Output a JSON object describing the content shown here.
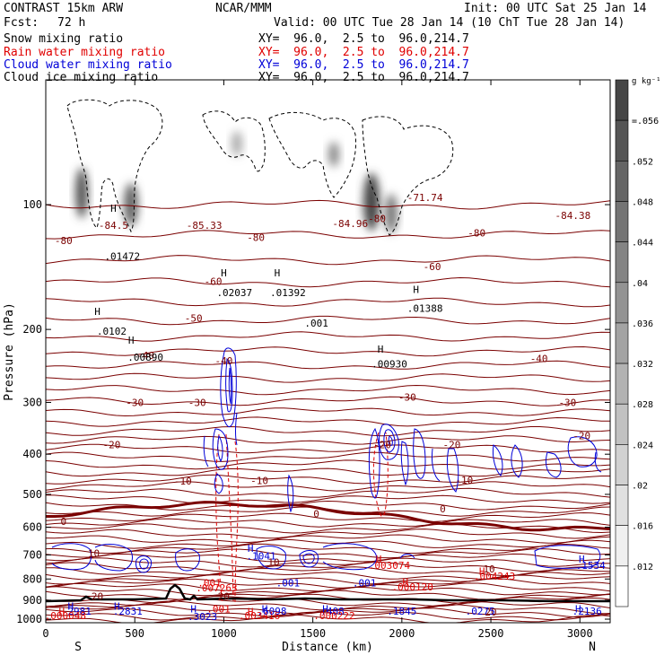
{
  "header": {
    "model": "CONTRAST 15km ARW",
    "center": "NCAR/MMM",
    "init": "Init: 00 UTC Sat 25 Jan 14",
    "fcst_label": "Fcst:",
    "fcst_value": "72 h",
    "valid": "Valid: 00 UTC Tue 28 Jan 14 (10 ChT Tue 28 Jan 14)"
  },
  "legend": [
    {
      "label": "Snow mixing ratio",
      "xy": "XY=  96.0,  2.5 to  96.0,214.7",
      "color": "#000000"
    },
    {
      "label": "Rain water mixing ratio",
      "xy": "XY=  96.0,  2.5 to  96.0,214.7",
      "color": "#e00000"
    },
    {
      "label": "Cloud water mixing ratio",
      "xy": "XY=  96.0,  2.5 to  96.0,214.7",
      "color": "#0000d8"
    },
    {
      "label": "Cloud ice mixing ratio",
      "xy": "XY=  96.0,  2.5 to  96.0,214.7",
      "color": "#000000"
    }
  ],
  "chart_data": {
    "type": "contour",
    "xlabel": "Distance (km)",
    "ylabel": "Pressure (hPa)",
    "xlim": [
      0,
      3170
    ],
    "ylim": [
      1020,
      50
    ],
    "y_log_scale": true,
    "x_ticks": [
      "0",
      "500",
      "1000",
      "1500",
      "2000",
      "2500",
      "3000"
    ],
    "y_ticks": [
      "100",
      "200",
      "300",
      "400",
      "500",
      "600",
      "700",
      "800",
      "900",
      "1000"
    ],
    "x_end_labels": {
      "left": "S",
      "right": "N"
    },
    "colorbar": {
      "unit": "g kg⁻¹",
      "ticks": [
        "=.056",
        ".052",
        ".048",
        ".044",
        ".04",
        ".036",
        ".032",
        ".028",
        ".024",
        ".02",
        ".016",
        ".012"
      ],
      "levels": [
        0.056,
        0.052,
        0.048,
        0.044,
        0.04,
        0.036,
        0.032,
        0.028,
        0.024,
        0.02,
        0.016,
        0.012
      ]
    },
    "temperature_contours": {
      "color": "#7a0000",
      "levels": [
        -80,
        -70,
        -60,
        -50,
        -40,
        -30,
        -20,
        -10,
        0,
        10,
        20
      ],
      "approx_pressure_hpa": [
        120,
        145,
        170,
        190,
        215,
        265,
        340,
        440,
        565,
        690,
        850
      ],
      "labels": [
        {
          "text": "-80",
          "x": 100,
          "p": 122
        },
        {
          "text": "-80",
          "x": 1180,
          "p": 120
        },
        {
          "text": "-80",
          "x": 1860,
          "p": 108
        },
        {
          "text": "-80",
          "x": 2420,
          "p": 117
        },
        {
          "text": "-71.74",
          "x": 2130,
          "p": 96
        },
        {
          "text": "-84.38",
          "x": 2960,
          "p": 106
        },
        {
          "text": "-84.5",
          "x": 380,
          "p": 112
        },
        {
          "text": "-85.33",
          "x": 890,
          "p": 112
        },
        {
          "text": "-84.96",
          "x": 1710,
          "p": 111
        },
        {
          "text": "-60",
          "x": 940,
          "p": 153
        },
        {
          "text": "-60",
          "x": 2170,
          "p": 141
        },
        {
          "text": "-50",
          "x": 830,
          "p": 188
        },
        {
          "text": "-40",
          "x": 560,
          "p": 231
        },
        {
          "text": "-40",
          "x": 1000,
          "p": 238
        },
        {
          "text": "-40",
          "x": 2770,
          "p": 235
        },
        {
          "text": "-30",
          "x": 500,
          "p": 300
        },
        {
          "text": "-30",
          "x": 850,
          "p": 300
        },
        {
          "text": "-30",
          "x": 2030,
          "p": 291
        },
        {
          "text": "-30",
          "x": 2930,
          "p": 300
        },
        {
          "text": "-20",
          "x": 370,
          "p": 379
        },
        {
          "text": "-20",
          "x": 1890,
          "p": 379
        },
        {
          "text": "-20",
          "x": 2280,
          "p": 379
        },
        {
          "text": "-20",
          "x": 3010,
          "p": 361
        },
        {
          "text": "-10",
          "x": 770,
          "p": 464
        },
        {
          "text": "-10",
          "x": 1200,
          "p": 463
        },
        {
          "text": "-10",
          "x": 2350,
          "p": 462
        },
        {
          "text": "0",
          "x": 100,
          "p": 581
        },
        {
          "text": "0",
          "x": 1520,
          "p": 557
        },
        {
          "text": "0",
          "x": 2230,
          "p": 542
        },
        {
          "text": "10",
          "x": 270,
          "p": 693
        },
        {
          "text": "10",
          "x": 1280,
          "p": 728
        },
        {
          "text": "10",
          "x": 2490,
          "p": 757
        },
        {
          "text": "20",
          "x": 290,
          "p": 880
        },
        {
          "text": "20",
          "x": 1000,
          "p": 880
        },
        {
          "text": "20",
          "x": 2500,
          "p": 960
        }
      ]
    },
    "annotations": [
      {
        "text": "H",
        "x": 380,
        "p": 102,
        "color": "#000000"
      },
      {
        "text": ".01472",
        "x": 430,
        "p": 133,
        "color": "#000000"
      },
      {
        "text": "H",
        "x": 290,
        "p": 181,
        "color": "#000000"
      },
      {
        "text": ".0102",
        "x": 370,
        "p": 202,
        "color": "#000000"
      },
      {
        "text": "H",
        "x": 480,
        "p": 212,
        "color": "#000000"
      },
      {
        "text": ".00890",
        "x": 560,
        "p": 233,
        "color": "#000000"
      },
      {
        "text": "H",
        "x": 1000,
        "p": 146,
        "color": "#000000"
      },
      {
        "text": ".02037",
        "x": 1060,
        "p": 163,
        "color": "#000000"
      },
      {
        "text": "H",
        "x": 1300,
        "p": 146,
        "color": "#000000"
      },
      {
        "text": ".01392",
        "x": 1360,
        "p": 163,
        "color": "#000000"
      },
      {
        "text": ".001",
        "x": 1520,
        "p": 193,
        "color": "#000000"
      },
      {
        "text": "H",
        "x": 1880,
        "p": 223,
        "color": "#000000"
      },
      {
        "text": ".00930",
        "x": 1930,
        "p": 242,
        "color": "#000000"
      },
      {
        "text": "H",
        "x": 2080,
        "p": 160,
        "color": "#000000"
      },
      {
        "text": ".01388",
        "x": 2130,
        "p": 178,
        "color": "#000000"
      },
      {
        "text": "H",
        "x": 1150,
        "p": 675,
        "color": "#0000d8"
      },
      {
        "text": ".1041",
        "x": 1210,
        "p": 703,
        "color": "#0000d8"
      },
      {
        "text": "H",
        "x": 1870,
        "p": 716,
        "color": "#e00000"
      },
      {
        "text": ".003074",
        "x": 1930,
        "p": 742,
        "color": "#e00000"
      },
      {
        "text": "H",
        "x": 2450,
        "p": 765,
        "color": "#e00000"
      },
      {
        "text": ".004243",
        "x": 2520,
        "p": 788,
        "color": "#e00000"
      },
      {
        "text": "H",
        "x": 3010,
        "p": 716,
        "color": "#0000d8"
      },
      {
        "text": ".1534",
        "x": 3060,
        "p": 742,
        "color": "#0000d8"
      },
      {
        "text": ".001",
        "x": 920,
        "p": 818,
        "color": "#e00000"
      },
      {
        "text": ".007263",
        "x": 960,
        "p": 840,
        "color": "#e00000"
      },
      {
        "text": ".001",
        "x": 1360,
        "p": 818,
        "color": "#0000d8"
      },
      {
        "text": ".001",
        "x": 1790,
        "p": 818,
        "color": "#0000d8"
      },
      {
        "text": "H",
        "x": 2020,
        "p": 813,
        "color": "#e00000"
      },
      {
        "text": ".000120",
        "x": 2060,
        "p": 835,
        "color": "#e00000"
      },
      {
        "text": "H",
        "x": 140,
        "p": 930,
        "color": "#0000d8"
      },
      {
        "text": "2981",
        "x": 190,
        "p": 956,
        "color": "#0000d8"
      },
      {
        "text": "H",
        "x": 90,
        "p": 958,
        "color": "#e00000"
      },
      {
        "text": ".000048",
        "x": 110,
        "p": 980,
        "color": "#e00000"
      },
      {
        "text": "H",
        "x": 400,
        "p": 930,
        "color": "#0000d8"
      },
      {
        "text": ".2831",
        "x": 460,
        "p": 956,
        "color": "#0000d8"
      },
      {
        "text": "H",
        "x": 830,
        "p": 945,
        "color": "#0000d8"
      },
      {
        "text": ".3023",
        "x": 880,
        "p": 985,
        "color": "#0000d8"
      },
      {
        "text": ".001",
        "x": 970,
        "p": 945,
        "color": "#e00000"
      },
      {
        "text": "H",
        "x": 1150,
        "p": 958,
        "color": "#e00000"
      },
      {
        "text": ".003416",
        "x": 1200,
        "p": 980,
        "color": "#e00000"
      },
      {
        "text": "H",
        "x": 1230,
        "p": 945,
        "color": "#0000d8"
      },
      {
        "text": ".6098",
        "x": 1270,
        "p": 956,
        "color": "#0000d8"
      },
      {
        "text": "H",
        "x": 1570,
        "p": 945,
        "color": "#0000d8"
      },
      {
        "text": ".408",
        "x": 1610,
        "p": 956,
        "color": "#0000d8"
      },
      {
        "text": ".000222",
        "x": 1620,
        "p": 980,
        "color": "#e00000"
      },
      {
        "text": ".1845",
        "x": 2000,
        "p": 956,
        "color": "#0000d8"
      },
      {
        "text": ".0275",
        "x": 2440,
        "p": 956,
        "color": "#0000d8"
      },
      {
        "text": "H",
        "x": 2990,
        "p": 945,
        "color": "#0000d8"
      },
      {
        "text": ".2136",
        "x": 3040,
        "p": 956,
        "color": "#0000d8"
      }
    ]
  }
}
